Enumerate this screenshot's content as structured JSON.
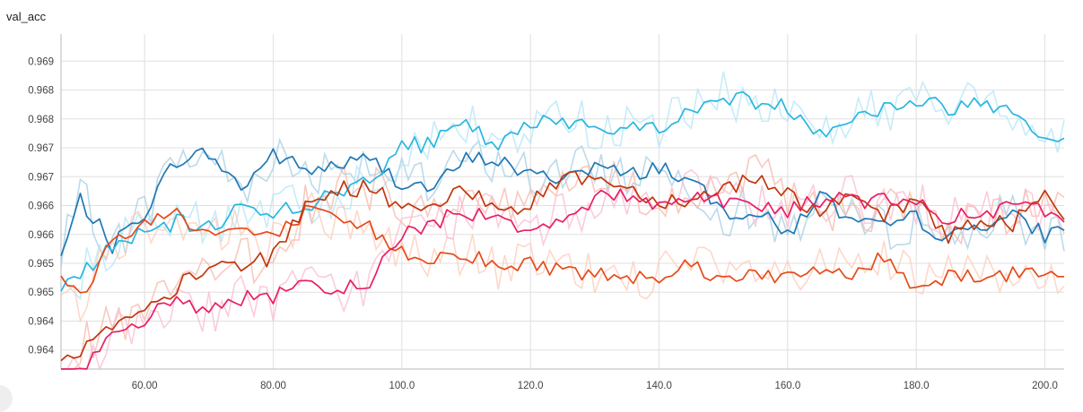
{
  "header": {
    "title": "val_acc"
  },
  "colors": {
    "grid": "#e0e0e0",
    "axis": "#b8b8b8",
    "series": [
      "#1f78b4",
      "#29b6e0",
      "#e64a19",
      "#bf360c",
      "#e91e63"
    ],
    "raw": [
      "#a6cee3",
      "#b3e5f5",
      "#fccbb8",
      "#f5b7a9",
      "#f8bbd0"
    ]
  },
  "chart_data": {
    "type": "line",
    "title": "val_acc",
    "xlabel": "",
    "ylabel": "",
    "xlim": [
      47,
      203
    ],
    "ylim": [
      0.96367,
      0.96947
    ],
    "grid": true,
    "legend": "none",
    "x_ticks": [
      {
        "value": 60,
        "label": "60.00"
      },
      {
        "value": 80,
        "label": "80.00"
      },
      {
        "value": 100,
        "label": "100.0"
      },
      {
        "value": 120,
        "label": "120.0"
      },
      {
        "value": 140,
        "label": "140.0"
      },
      {
        "value": 160,
        "label": "160.0"
      },
      {
        "value": 180,
        "label": "180.0"
      },
      {
        "value": 200,
        "label": "200.0"
      }
    ],
    "y_ticks": [
      {
        "value": 0.969,
        "label": "0.969"
      },
      {
        "value": 0.9685,
        "label": "0.968"
      },
      {
        "value": 0.968,
        "label": "0.968"
      },
      {
        "value": 0.9675,
        "label": "0.967"
      },
      {
        "value": 0.967,
        "label": "0.967"
      },
      {
        "value": 0.9665,
        "label": "0.966"
      },
      {
        "value": 0.966,
        "label": "0.966"
      },
      {
        "value": 0.9655,
        "label": "0.965"
      },
      {
        "value": 0.965,
        "label": "0.965"
      },
      {
        "value": 0.9645,
        "label": "0.964"
      },
      {
        "value": 0.964,
        "label": "0.964"
      }
    ],
    "series": [
      {
        "x": [
          47,
          50,
          55,
          60,
          65,
          70,
          75,
          80,
          85,
          90,
          95,
          100,
          105,
          110,
          115,
          120,
          125,
          130,
          135,
          140,
          145,
          150,
          155,
          160,
          165,
          170,
          175,
          180,
          185,
          190,
          195,
          200,
          203
        ],
        "values": [
          0.9656,
          0.9666,
          0.9658,
          0.9664,
          0.9673,
          0.9674,
          0.9668,
          0.9674,
          0.9671,
          0.9672,
          0.9673,
          0.9669,
          0.9668,
          0.9673,
          0.9673,
          0.967,
          0.967,
          0.9672,
          0.967,
          0.9672,
          0.9669,
          0.9664,
          0.9664,
          0.966,
          0.9667,
          0.9662,
          0.9661,
          0.9663,
          0.9659,
          0.9662,
          0.9663,
          0.966,
          0.9661
        ]
      },
      {
        "x": [
          47,
          50,
          55,
          60,
          65,
          70,
          75,
          80,
          85,
          90,
          95,
          100,
          105,
          110,
          115,
          120,
          125,
          130,
          135,
          140,
          145,
          150,
          155,
          160,
          165,
          170,
          175,
          180,
          185,
          190,
          195,
          200,
          203
        ],
        "values": [
          0.9651,
          0.9653,
          0.9658,
          0.966,
          0.9662,
          0.9661,
          0.9665,
          0.9664,
          0.9665,
          0.9667,
          0.967,
          0.9675,
          0.9676,
          0.9679,
          0.9675,
          0.9679,
          0.968,
          0.9679,
          0.9678,
          0.9679,
          0.9681,
          0.9684,
          0.9683,
          0.9682,
          0.9678,
          0.968,
          0.9682,
          0.9683,
          0.9682,
          0.9683,
          0.9682,
          0.9677,
          0.9676
        ]
      },
      {
        "x": [
          47,
          50,
          55,
          60,
          65,
          70,
          75,
          80,
          85,
          90,
          95,
          100,
          105,
          110,
          115,
          120,
          125,
          130,
          135,
          140,
          145,
          150,
          155,
          160,
          165,
          170,
          175,
          180,
          185,
          190,
          195,
          200,
          203
        ],
        "values": [
          0.9652,
          0.9649,
          0.9659,
          0.9662,
          0.9664,
          0.966,
          0.9661,
          0.9659,
          0.9664,
          0.9662,
          0.9661,
          0.9657,
          0.9656,
          0.9657,
          0.9654,
          0.9655,
          0.9654,
          0.9653,
          0.9653,
          0.9653,
          0.9655,
          0.9652,
          0.9654,
          0.9652,
          0.9654,
          0.9653,
          0.9656,
          0.9651,
          0.9653,
          0.9653,
          0.9653,
          0.9654,
          0.9654
        ]
      },
      {
        "x": [
          47,
          50,
          55,
          60,
          65,
          70,
          75,
          80,
          85,
          90,
          95,
          100,
          105,
          110,
          115,
          120,
          125,
          130,
          135,
          140,
          145,
          150,
          155,
          160,
          165,
          170,
          175,
          180,
          185,
          190,
          195,
          200,
          203
        ],
        "values": [
          0.9637,
          0.964,
          0.9644,
          0.9646,
          0.9651,
          0.9654,
          0.9655,
          0.9656,
          0.9665,
          0.9668,
          0.9668,
          0.9665,
          0.9664,
          0.9668,
          0.9665,
          0.9665,
          0.967,
          0.967,
          0.9668,
          0.9666,
          0.9666,
          0.9668,
          0.967,
          0.9667,
          0.9664,
          0.9666,
          0.9663,
          0.9666,
          0.966,
          0.9662,
          0.9662,
          0.9667,
          0.9664
        ]
      },
      {
        "x": [
          47,
          50,
          55,
          60,
          65,
          70,
          75,
          80,
          85,
          90,
          95,
          100,
          105,
          110,
          115,
          120,
          125,
          130,
          135,
          140,
          145,
          150,
          155,
          160,
          165,
          170,
          175,
          180,
          185,
          190,
          195,
          200,
          203
        ],
        "values": [
          0.9633,
          0.9636,
          0.9642,
          0.9645,
          0.9649,
          0.9647,
          0.9649,
          0.9649,
          0.9651,
          0.965,
          0.9652,
          0.966,
          0.9662,
          0.9664,
          0.9663,
          0.9661,
          0.9663,
          0.9666,
          0.9667,
          0.9665,
          0.9667,
          0.9666,
          0.9665,
          0.9664,
          0.9666,
          0.9666,
          0.9666,
          0.9665,
          0.9663,
          0.9663,
          0.9665,
          0.9664,
          0.9663
        ]
      }
    ]
  }
}
